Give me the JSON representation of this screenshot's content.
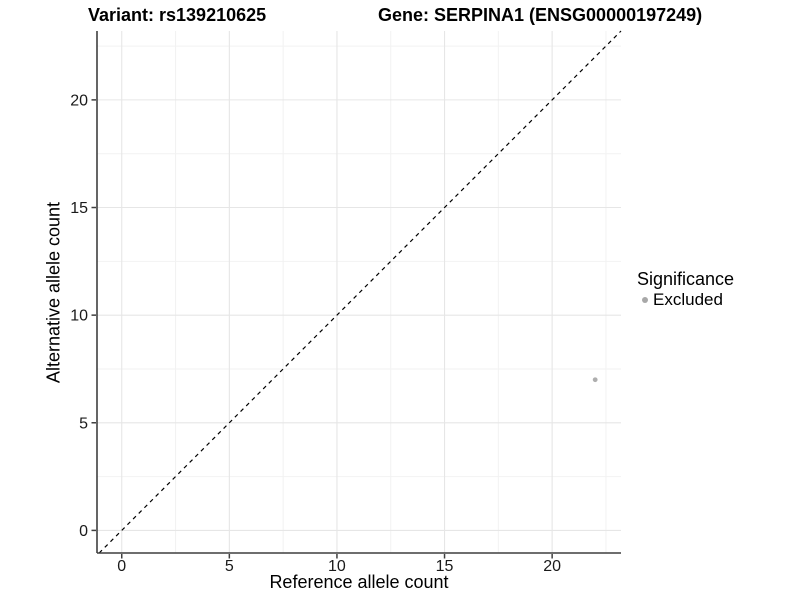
{
  "title": {
    "variant": "Variant: rs139210625",
    "gene": "Gene: SERPINA1 (ENSG00000197249)"
  },
  "chart_data": {
    "type": "scatter",
    "xlabel": "Reference allele count",
    "ylabel": "Alternative allele count",
    "xlim": [
      -1.15,
      23.2
    ],
    "ylim": [
      -1.05,
      23.2
    ],
    "xticks": [
      0,
      5,
      10,
      15,
      20
    ],
    "yticks": [
      0,
      5,
      10,
      15,
      20
    ],
    "xtick_labels": [
      "0",
      "5",
      "10",
      "15",
      "20"
    ],
    "ytick_labels": [
      "0",
      "5",
      "10",
      "15",
      "20"
    ],
    "grid": true,
    "minor_grid": true,
    "identity_line": {
      "type": "dashed",
      "slope": 1,
      "intercept": 0,
      "color": "#000000"
    },
    "series": [
      {
        "name": "Excluded",
        "color": "#aeaeae",
        "points": [
          {
            "x": 22,
            "y": 7
          }
        ]
      }
    ],
    "legend": {
      "position": "right",
      "title": "Significance",
      "entries": [
        {
          "label": "Excluded",
          "color": "#a8a8a8"
        }
      ]
    },
    "colors": {
      "axis_line": "#3f3f3f",
      "tick_label": "#1a1a1a",
      "grid_major": "#e6e6e6",
      "grid_minor": "#f2f2f2",
      "panel_background": "#ffffff"
    }
  }
}
